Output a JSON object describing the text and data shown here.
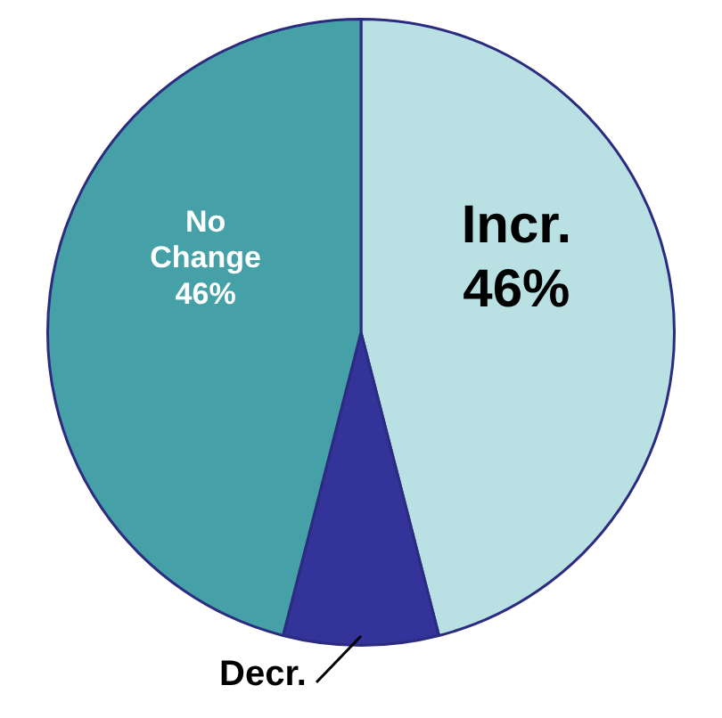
{
  "chart_data": {
    "type": "pie",
    "categories": [
      "Incr.",
      "Decr.",
      "No\nChange"
    ],
    "values": [
      46,
      8,
      46
    ],
    "value_labels": [
      "46%",
      null,
      "46%"
    ],
    "colors": [
      "#b9e0e3",
      "#333399",
      "#45a0a8"
    ],
    "legend": false
  }
}
